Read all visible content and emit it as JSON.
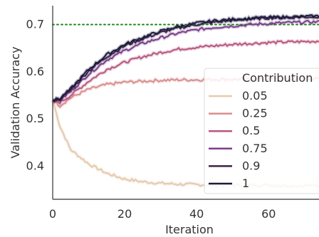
{
  "chart_data": {
    "type": "line",
    "title": "",
    "xlabel": "Iteration",
    "ylabel": "Validation Accuracy",
    "xlim": [
      0,
      74
    ],
    "ylim": [
      0.33,
      0.74
    ],
    "xticks": [
      "0",
      "20",
      "40",
      "60"
    ],
    "yticks": [
      "0.4",
      "0.5",
      "0.6",
      "0.7"
    ],
    "grid": false,
    "legend_placement": "right",
    "legend_title": "Contribution",
    "reference_line": {
      "y": 0.7,
      "color": "#1a8a1a",
      "style": "dotted"
    },
    "x": [
      0,
      2,
      5,
      10,
      15,
      20,
      25,
      30,
      35,
      40,
      45,
      50,
      55,
      60,
      65,
      70,
      74
    ],
    "series": [
      {
        "name": "0.05",
        "color": "#e5c9ad",
        "values": [
          0.54,
          0.485,
          0.435,
          0.405,
          0.385,
          0.373,
          0.367,
          0.364,
          0.362,
          0.361,
          0.36,
          0.36,
          0.36,
          0.36,
          0.359,
          0.359,
          0.359
        ]
      },
      {
        "name": "0.25",
        "color": "#d98e8e",
        "values": [
          0.54,
          0.528,
          0.545,
          0.563,
          0.573,
          0.578,
          0.58,
          0.582,
          0.583,
          0.583,
          0.584,
          0.584,
          0.584,
          0.585,
          0.585,
          0.585,
          0.585
        ]
      },
      {
        "name": "0.5",
        "color": "#b8577e",
        "values": [
          0.54,
          0.535,
          0.55,
          0.58,
          0.605,
          0.62,
          0.632,
          0.641,
          0.648,
          0.652,
          0.655,
          0.658,
          0.66,
          0.662,
          0.663,
          0.664,
          0.665
        ]
      },
      {
        "name": "0.75",
        "color": "#7a3e8c",
        "values": [
          0.54,
          0.54,
          0.558,
          0.595,
          0.625,
          0.645,
          0.66,
          0.672,
          0.682,
          0.689,
          0.694,
          0.697,
          0.7,
          0.702,
          0.704,
          0.705,
          0.706
        ]
      },
      {
        "name": "0.9",
        "color": "#3b2346",
        "values": [
          0.54,
          0.542,
          0.562,
          0.602,
          0.632,
          0.655,
          0.67,
          0.683,
          0.693,
          0.7,
          0.705,
          0.709,
          0.712,
          0.714,
          0.715,
          0.716,
          0.717
        ]
      },
      {
        "name": "1",
        "color": "#1d1a3e",
        "values": [
          0.54,
          0.543,
          0.564,
          0.605,
          0.636,
          0.658,
          0.673,
          0.686,
          0.696,
          0.703,
          0.708,
          0.711,
          0.713,
          0.715,
          0.716,
          0.717,
          0.718
        ]
      }
    ]
  }
}
